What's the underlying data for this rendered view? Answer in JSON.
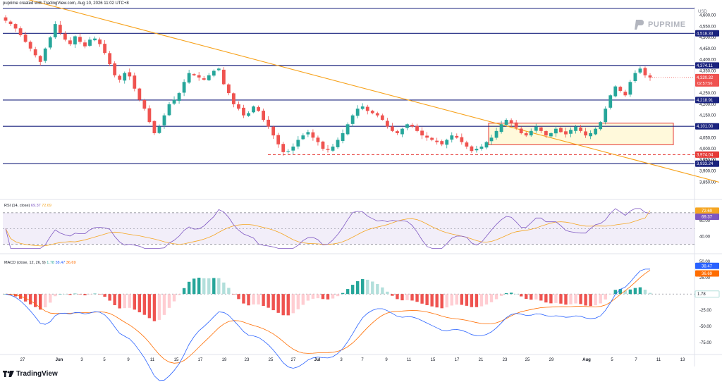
{
  "header": {
    "source": "puprime created with TradingView.com, Aug 10, 2026 11:02 UTC+8"
  },
  "branding": {
    "logo_text": "PUPRIME",
    "footer_logo": "TradingView",
    "tv_icon": "tradingview-logo-icon",
    "brand_icon": "puprime-logo-icon"
  },
  "colors": {
    "hline": "#1a237e",
    "trend": "#f7a21b",
    "up": "#26a69a",
    "down": "#ef5350",
    "box_fill": "#fff9db",
    "box_edge": "#e53935",
    "rsi": "#7e57c2",
    "rsi_ma": "#f5a623",
    "macd": "#2962ff",
    "signal": "#ff6d00"
  },
  "chart_data": [
    {
      "type": "candlestick",
      "currency": "USD",
      "y_ticks": [
        3850,
        3900,
        3950,
        4000,
        4050,
        4100,
        4150,
        4200,
        4250,
        4300,
        4350,
        4400,
        4450,
        4500,
        4550,
        4600
      ],
      "y_tick_labels": [
        "3,850.00",
        "3,900.00",
        "3,950.00",
        "4,000.00",
        "4,050.00",
        "4,100.00",
        "4,150.00",
        "4,200.00",
        "4,250.00",
        "4,300.00",
        "4,350.00",
        "4,400.00",
        "4,450.00",
        "4,500.00",
        "4,550.00",
        "4,600.00"
      ],
      "ylim": [
        3820,
        4630
      ],
      "x_labels": [
        "27",
        "Jun",
        "3",
        "5",
        "9",
        "11",
        "15",
        "17",
        "19",
        "23",
        "25",
        "27",
        "Jul",
        "3",
        "7",
        "9",
        "11",
        "15",
        "17",
        "21",
        "23",
        "25",
        "29",
        "Aug",
        "5",
        "7",
        "11",
        "13"
      ],
      "x_label_bold": [
        "Jun",
        "Jul",
        "Aug"
      ],
      "close_series": [
        4575,
        4560,
        4540,
        4510,
        4480,
        4450,
        4420,
        4390,
        4450,
        4500,
        4560,
        4520,
        4490,
        4470,
        4505,
        4480,
        4460,
        4490,
        4495,
        4470,
        4430,
        4380,
        4330,
        4310,
        4340,
        4325,
        4270,
        4220,
        4180,
        4120,
        4070,
        4100,
        4150,
        4200,
        4220,
        4250,
        4300,
        4340,
        4330,
        4320,
        4310,
        4330,
        4350,
        4360,
        4290,
        4250,
        4200,
        4180,
        4150,
        4160,
        4190,
        4170,
        4130,
        4100,
        4060,
        4020,
        3985,
        3990,
        4010,
        4040,
        4060,
        4075,
        4050,
        4030,
        4000,
        3995,
        4010,
        4040,
        4070,
        4110,
        4150,
        4180,
        4190,
        4170,
        4160,
        4150,
        4130,
        4100,
        4080,
        4070,
        4090,
        4110,
        4100,
        4080,
        4060,
        4050,
        4040,
        4030,
        4020,
        4040,
        4060,
        4050,
        4030,
        4010,
        3990,
        4000,
        4010,
        4030,
        4050,
        4080,
        4110,
        4130,
        4115,
        4095,
        4070,
        4060,
        4080,
        4100,
        4080,
        4060,
        4070,
        4090,
        4075,
        4065,
        4085,
        4100,
        4080,
        4060,
        4070,
        4090,
        4120,
        4180,
        4240,
        4280,
        4260,
        4240,
        4300,
        4340,
        4360,
        4330,
        4320
      ],
      "lines": [
        {
          "price": 4518.33,
          "label": "4,518.33",
          "color": "#1a237e"
        },
        {
          "price": 4374.11,
          "label": "4,374.11",
          "color": "#1a237e"
        },
        {
          "price": 4218.91,
          "label": "4,218.91",
          "color": "#1a237e"
        },
        {
          "price": 4101.0,
          "label": "4,101.00",
          "color": "#1a237e"
        },
        {
          "price": 3933.24,
          "label": "3,933.24",
          "color": "#1a237e"
        }
      ],
      "current_price": {
        "price": 4320.32,
        "label": "4,320.32",
        "countdown": "02:57:56"
      },
      "dashed_level": {
        "price": 3974.04,
        "label": "3,974.04"
      },
      "partial_label": "3,950.00",
      "trendline": {
        "start_price": 4700,
        "end_price": 3850
      },
      "consolidation_box": {
        "top": 4115,
        "bottom": 4018
      }
    },
    {
      "type": "line",
      "title": "RSI",
      "params": "(14, close)",
      "values_label": [
        "69.37",
        "72.69"
      ],
      "y_ticks": [
        40,
        60
      ],
      "y_tick_labels": [
        "40.00",
        "60.00"
      ],
      "ylim": [
        20,
        85
      ],
      "band": [
        30,
        70
      ],
      "last": {
        "rsi": 69.37,
        "ma": 72.69
      }
    },
    {
      "type": "histogram+line",
      "title": "MACD",
      "params": "(close, 12, 26, 9)",
      "values_label": [
        "1.78",
        "38.47",
        "36.69"
      ],
      "y_ticks": [
        -75,
        -50,
        -25,
        0,
        25
      ],
      "y_tick_labels": [
        "-75.00",
        "-50.00",
        "-25.00",
        "",
        "25.00"
      ],
      "ylim": [
        -90,
        60
      ],
      "last": {
        "hist": 1.78,
        "macd": 38.47,
        "signal": 36.69
      },
      "partial_label": "50.00"
    }
  ]
}
